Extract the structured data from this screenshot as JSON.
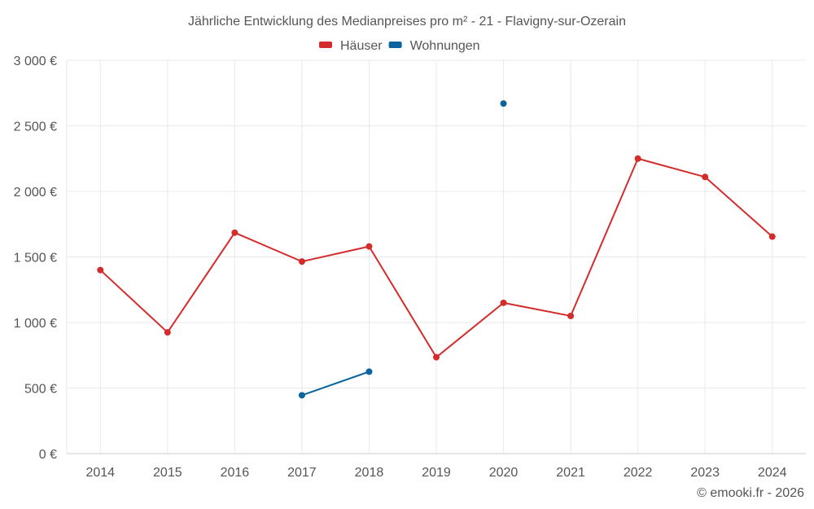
{
  "chart_data": {
    "type": "line",
    "title": "Jährliche Entwicklung des Medianpreises pro m² - 21 - Flavigny-sur-Ozerain",
    "categories": [
      "2014",
      "2015",
      "2016",
      "2017",
      "2018",
      "2019",
      "2020",
      "2021",
      "2022",
      "2023",
      "2024"
    ],
    "series": [
      {
        "name": "Häuser",
        "color": "#d42b2b",
        "values": [
          1400,
          925,
          1685,
          1465,
          1580,
          735,
          1150,
          1050,
          2250,
          2110,
          1655
        ]
      },
      {
        "name": "Wohnungen",
        "color": "#0b64a0",
        "values": [
          null,
          null,
          null,
          445,
          625,
          null,
          2670,
          null,
          null,
          null,
          null
        ]
      }
    ],
    "ylim": [
      0,
      3000
    ],
    "yticks": [
      0,
      500,
      1000,
      1500,
      2000,
      2500,
      3000
    ],
    "ytick_labels": [
      "0 €",
      "500 €",
      "1 000 €",
      "1 500 €",
      "2 000 €",
      "2 500 €",
      "3 000 €"
    ],
    "xlabel": "",
    "ylabel": "",
    "grid": true,
    "legend_position": "top-center"
  },
  "credit": "© emooki.fr - 2026"
}
